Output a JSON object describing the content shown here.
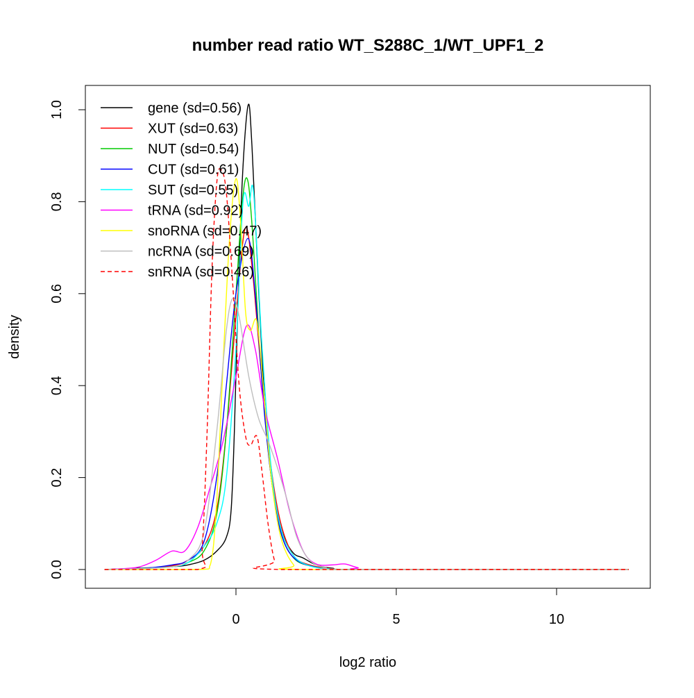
{
  "chart_data": {
    "type": "line",
    "title": "number read ratio WT_S288C_1/WT_UPF1_2",
    "xlabel": "log2 ratio",
    "ylabel": "density",
    "xlim": [
      -4.1,
      12.25
    ],
    "ylim": [
      0,
      1.0
    ],
    "x_ticks": [
      0,
      5,
      10
    ],
    "x_tick_labels": [
      "0",
      "5",
      "10"
    ],
    "y_ticks": [
      0,
      0.2,
      0.4,
      0.6,
      0.8,
      1.0
    ],
    "y_tick_labels": [
      "0.0",
      "0.2",
      "0.4",
      "0.6",
      "0.8",
      "1.0"
    ],
    "grid": false,
    "legend_position": "top-left",
    "series": [
      {
        "name": "gene (sd=0.56)",
        "color": "#000000",
        "dash": false,
        "points": [
          [
            -4.1,
            0
          ],
          [
            -3,
            0.003
          ],
          [
            -2,
            0.006
          ],
          [
            -1.5,
            0.01
          ],
          [
            -1,
            0.02
          ],
          [
            -0.6,
            0.04
          ],
          [
            -0.3,
            0.07
          ],
          [
            -0.15,
            0.13
          ],
          [
            -0.05,
            0.3
          ],
          [
            0.05,
            0.55
          ],
          [
            0.2,
            0.85
          ],
          [
            0.38,
            1.01
          ],
          [
            0.5,
            0.92
          ],
          [
            0.7,
            0.62
          ],
          [
            0.9,
            0.36
          ],
          [
            1.1,
            0.2
          ],
          [
            1.3,
            0.12
          ],
          [
            1.5,
            0.07
          ],
          [
            1.8,
            0.035
          ],
          [
            2.1,
            0.025
          ],
          [
            2.5,
            0.01
          ],
          [
            3,
            0.003
          ],
          [
            4,
            0
          ],
          [
            12.25,
            0
          ]
        ]
      },
      {
        "name": "XUT (sd=0.63)",
        "color": "#ff0000",
        "dash": false,
        "points": [
          [
            -4.1,
            0
          ],
          [
            -3,
            0.002
          ],
          [
            -2,
            0.008
          ],
          [
            -1.5,
            0.02
          ],
          [
            -1,
            0.05
          ],
          [
            -0.6,
            0.13
          ],
          [
            -0.3,
            0.3
          ],
          [
            0,
            0.55
          ],
          [
            0.28,
            0.74
          ],
          [
            0.5,
            0.66
          ],
          [
            0.8,
            0.42
          ],
          [
            1.1,
            0.22
          ],
          [
            1.4,
            0.1
          ],
          [
            1.8,
            0.03
          ],
          [
            2.3,
            0.01
          ],
          [
            3,
            0.002
          ],
          [
            4,
            0
          ],
          [
            12.25,
            0
          ]
        ]
      },
      {
        "name": "NUT (sd=0.54)",
        "color": "#00cc00",
        "dash": false,
        "points": [
          [
            -4.1,
            0
          ],
          [
            -3,
            0.002
          ],
          [
            -2,
            0.006
          ],
          [
            -1.5,
            0.015
          ],
          [
            -1,
            0.04
          ],
          [
            -0.6,
            0.12
          ],
          [
            -0.3,
            0.3
          ],
          [
            0,
            0.6
          ],
          [
            0.2,
            0.8
          ],
          [
            0.35,
            0.85
          ],
          [
            0.5,
            0.75
          ],
          [
            0.8,
            0.42
          ],
          [
            1.1,
            0.2
          ],
          [
            1.4,
            0.08
          ],
          [
            1.8,
            0.025
          ],
          [
            2.3,
            0.008
          ],
          [
            3,
            0.001
          ],
          [
            4,
            0
          ],
          [
            12.25,
            0
          ]
        ]
      },
      {
        "name": "CUT (sd=0.61)",
        "color": "#0000ff",
        "dash": false,
        "points": [
          [
            -4.1,
            0
          ],
          [
            -3,
            0.002
          ],
          [
            -2,
            0.01
          ],
          [
            -1.5,
            0.02
          ],
          [
            -1,
            0.06
          ],
          [
            -0.6,
            0.2
          ],
          [
            -0.3,
            0.4
          ],
          [
            0,
            0.6
          ],
          [
            0.37,
            0.72
          ],
          [
            0.6,
            0.6
          ],
          [
            0.9,
            0.33
          ],
          [
            1.2,
            0.15
          ],
          [
            1.5,
            0.06
          ],
          [
            1.9,
            0.02
          ],
          [
            2.5,
            0.005
          ],
          [
            3,
            0.001
          ],
          [
            4,
            0
          ],
          [
            12.25,
            0
          ]
        ]
      },
      {
        "name": "SUT (sd=0.55)",
        "color": "#00ffff",
        "dash": false,
        "points": [
          [
            -4.1,
            0
          ],
          [
            -3,
            0.002
          ],
          [
            -2,
            0.006
          ],
          [
            -1.5,
            0.015
          ],
          [
            -1,
            0.05
          ],
          [
            -0.6,
            0.1
          ],
          [
            -0.3,
            0.2
          ],
          [
            0,
            0.48
          ],
          [
            0.22,
            0.8
          ],
          [
            0.4,
            0.79
          ],
          [
            0.55,
            0.82
          ],
          [
            0.8,
            0.5
          ],
          [
            1.1,
            0.22
          ],
          [
            1.4,
            0.09
          ],
          [
            1.8,
            0.03
          ],
          [
            2.3,
            0.008
          ],
          [
            3,
            0.001
          ],
          [
            4,
            0
          ],
          [
            12.25,
            0
          ]
        ]
      },
      {
        "name": "tRNA (sd=0.92)",
        "color": "#ff00ff",
        "dash": false,
        "points": [
          [
            -4.1,
            0
          ],
          [
            -3.5,
            0.002
          ],
          [
            -3,
            0.006
          ],
          [
            -2.5,
            0.02
          ],
          [
            -2,
            0.04
          ],
          [
            -1.6,
            0.04
          ],
          [
            -1.2,
            0.09
          ],
          [
            -0.8,
            0.18
          ],
          [
            -0.4,
            0.28
          ],
          [
            0,
            0.42
          ],
          [
            0.33,
            0.53
          ],
          [
            0.6,
            0.48
          ],
          [
            0.9,
            0.35
          ],
          [
            1.3,
            0.24
          ],
          [
            1.7,
            0.12
          ],
          [
            2.1,
            0.04
          ],
          [
            2.5,
            0.012
          ],
          [
            3,
            0.01
          ],
          [
            3.4,
            0.012
          ],
          [
            3.8,
            0.004
          ],
          [
            4.3,
            0
          ],
          [
            12.25,
            0
          ]
        ]
      },
      {
        "name": "snoRNA (sd=0.47)",
        "color": "#ffff00",
        "dash": false,
        "points": [
          [
            -4.1,
            0
          ],
          [
            -1.2,
            0
          ],
          [
            -0.8,
            0.01
          ],
          [
            -0.6,
            0.15
          ],
          [
            -0.4,
            0.45
          ],
          [
            -0.2,
            0.72
          ],
          [
            0,
            0.85
          ],
          [
            0.15,
            0.75
          ],
          [
            0.3,
            0.56
          ],
          [
            0.45,
            0.52
          ],
          [
            0.65,
            0.54
          ],
          [
            0.85,
            0.4
          ],
          [
            1.1,
            0.2
          ],
          [
            1.4,
            0.07
          ],
          [
            1.8,
            0.01
          ],
          [
            2.2,
            0
          ],
          [
            12.25,
            0
          ]
        ]
      },
      {
        "name": "ncRNA (sd=0.69)",
        "color": "#bebebe",
        "dash": false,
        "points": [
          [
            -4.1,
            0
          ],
          [
            -3,
            0.002
          ],
          [
            -2,
            0.006
          ],
          [
            -1.5,
            0.02
          ],
          [
            -1,
            0.08
          ],
          [
            -0.6,
            0.3
          ],
          [
            -0.3,
            0.52
          ],
          [
            -0.1,
            0.59
          ],
          [
            0.1,
            0.55
          ],
          [
            0.4,
            0.42
          ],
          [
            0.7,
            0.33
          ],
          [
            1.0,
            0.28
          ],
          [
            1.3,
            0.22
          ],
          [
            1.6,
            0.15
          ],
          [
            1.9,
            0.07
          ],
          [
            2.3,
            0.02
          ],
          [
            2.8,
            0.004
          ],
          [
            3.5,
            0
          ],
          [
            12.25,
            0
          ]
        ]
      },
      {
        "name": "snRNA (sd=0.46)",
        "color": "#ff0000",
        "dash": true,
        "points": [
          [
            -4.1,
            0
          ],
          [
            -1.2,
            0
          ],
          [
            -1.05,
            0.05
          ],
          [
            -0.9,
            0.3
          ],
          [
            -0.75,
            0.65
          ],
          [
            -0.6,
            0.84
          ],
          [
            -0.47,
            0.87
          ],
          [
            -0.3,
            0.82
          ],
          [
            -0.1,
            0.62
          ],
          [
            0.1,
            0.4
          ],
          [
            0.3,
            0.29
          ],
          [
            0.45,
            0.27
          ],
          [
            0.65,
            0.29
          ],
          [
            0.8,
            0.22
          ],
          [
            1.0,
            0.1
          ],
          [
            1.2,
            0.02
          ],
          [
            1.4,
            0
          ],
          [
            12.25,
            0
          ]
        ]
      }
    ]
  }
}
